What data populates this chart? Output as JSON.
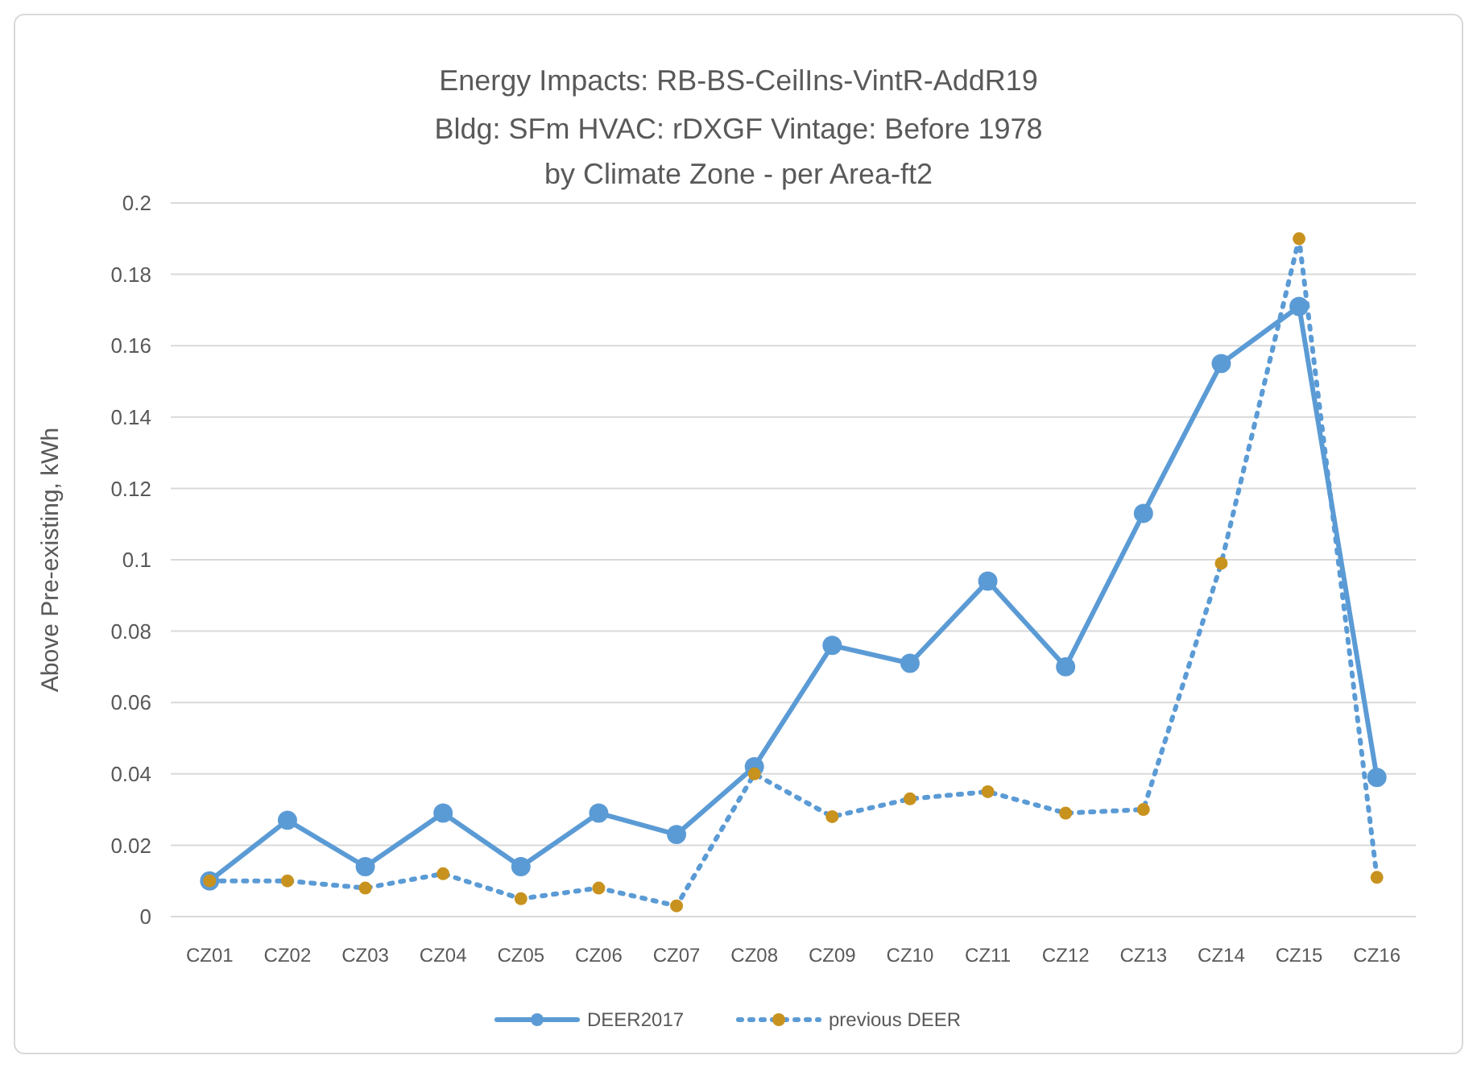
{
  "chart_data": {
    "type": "line",
    "title": "Energy Impacts: RB-BS-CeilIns-VintR-AddR19",
    "subtitle": "Bldg: SFm    HVAC: rDXGF    Vintage: Before 1978\nby Climate Zone - per Area-ft2",
    "ylabel": "Above Pre-existing, kWh",
    "categories": [
      "CZ01",
      "CZ02",
      "CZ03",
      "CZ04",
      "CZ05",
      "CZ06",
      "CZ07",
      "CZ08",
      "CZ09",
      "CZ10",
      "CZ11",
      "CZ12",
      "CZ13",
      "CZ14",
      "CZ15",
      "CZ16"
    ],
    "series": [
      {
        "name": "DEER2017",
        "color": "#5b9bd5",
        "line_style": "solid",
        "values": [
          0.01,
          0.027,
          0.014,
          0.029,
          0.014,
          0.029,
          0.023,
          0.042,
          0.076,
          0.071,
          0.094,
          0.07,
          0.113,
          0.155,
          0.171,
          0.039
        ]
      },
      {
        "name": "previous DEER",
        "color": "#5b9bd5",
        "line_style": "dotted",
        "colors": [
          "#c8921e",
          "#c8921e",
          "#c8921e",
          "#c8921e",
          "#c8921e",
          "#c8921e",
          "#c8921e",
          "#c8921e",
          "#c8921e",
          "#c8921e",
          "#c8921e",
          "#c8921e",
          "#c8921e",
          "#c8921e",
          "#c8921e",
          "#c8921e"
        ],
        "values": [
          0.01,
          0.01,
          0.008,
          0.012,
          0.005,
          0.008,
          0.003,
          0.04,
          0.028,
          0.033,
          0.035,
          0.029,
          0.03,
          0.099,
          0.19,
          0.011
        ]
      }
    ],
    "ylim": [
      0,
      0.2
    ],
    "yticks": [
      0,
      0.02,
      0.04,
      0.06,
      0.08,
      0.1,
      0.12,
      0.14,
      0.16,
      0.18,
      0.2
    ],
    "grid": "y",
    "legend": "bottom",
    "marker": "circle"
  }
}
